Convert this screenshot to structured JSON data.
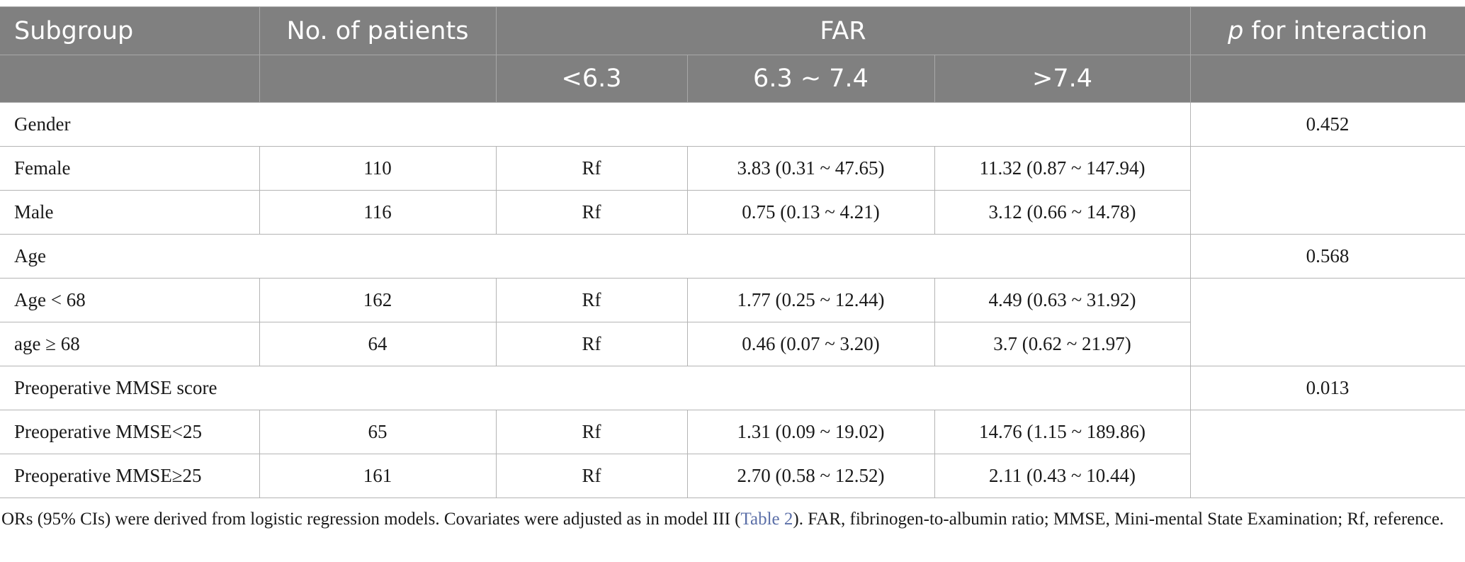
{
  "header": {
    "subgroup": "Subgroup",
    "patients": "No. of patients",
    "far": "FAR",
    "p_italic": "p",
    "p_rest": " for interaction",
    "far_groups": [
      "<6.3",
      "6.3 ~ 7.4",
      ">7.4"
    ]
  },
  "sections": [
    {
      "title": "Gender",
      "p": "0.452",
      "rows": [
        {
          "subgroup": "Female",
          "patients": "110",
          "ref": "Rf",
          "mid": "3.83 (0.31 ~ 47.65)",
          "high": "11.32 (0.87 ~ 147.94)"
        },
        {
          "subgroup": "Male",
          "patients": "116",
          "ref": "Rf",
          "mid": "0.75 (0.13 ~ 4.21)",
          "high": "3.12 (0.66 ~ 14.78)"
        }
      ]
    },
    {
      "title": "Age",
      "p": "0.568",
      "rows": [
        {
          "subgroup": "Age < 68",
          "patients": "162",
          "ref": "Rf",
          "mid": "1.77 (0.25 ~ 12.44)",
          "high": "4.49 (0.63 ~ 31.92)"
        },
        {
          "subgroup": "age ≥ 68",
          "patients": "64",
          "ref": "Rf",
          "mid": "0.46 (0.07 ~ 3.20)",
          "high": "3.7 (0.62 ~ 21.97)"
        }
      ]
    },
    {
      "title": "Preoperative MMSE score",
      "p": "0.013",
      "rows": [
        {
          "subgroup": "Preoperative MMSE<25",
          "patients": "65",
          "ref": "Rf",
          "mid": "1.31 (0.09 ~ 19.02)",
          "high": "14.76 (1.15 ~ 189.86)"
        },
        {
          "subgroup": "Preoperative MMSE≥25",
          "patients": "161",
          "ref": "Rf",
          "mid": "2.70 (0.58 ~ 12.52)",
          "high": "2.11 (0.43 ~ 10.44)"
        }
      ]
    }
  ],
  "footnote": {
    "before": "ORs (95% CIs) were derived from logistic regression models. Covariates were adjusted as in model III (",
    "link": "Table 2",
    "after": "). FAR, fibrinogen-to-albumin ratio; MMSE, Mini-mental State Examination; Rf, reference."
  }
}
